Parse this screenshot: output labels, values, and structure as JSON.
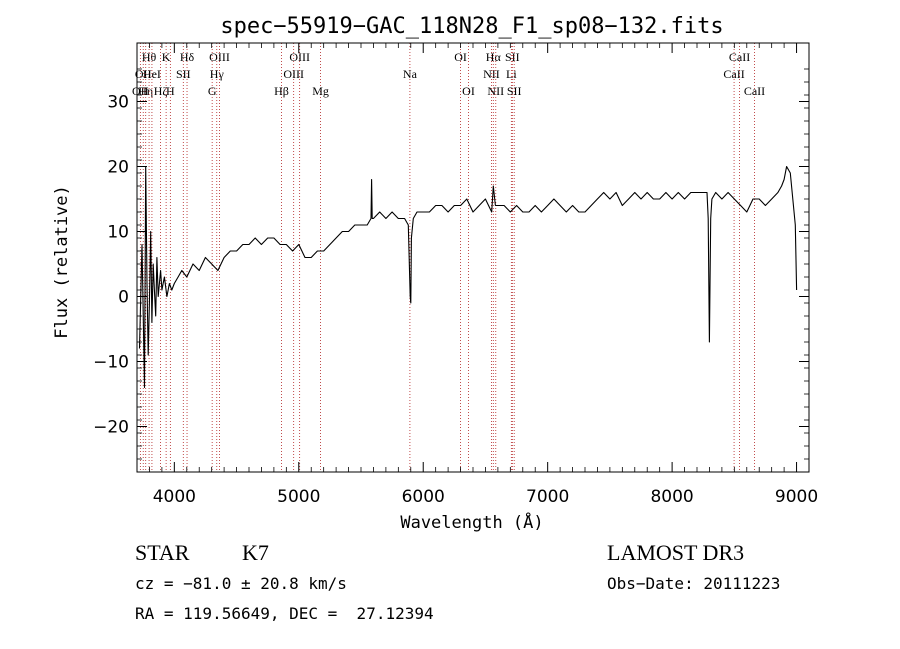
{
  "chart_data": {
    "type": "line",
    "title": "spec−55919−GAC_118N28_F1_sp08−132.fits",
    "xlabel": "Wavelength (Å)",
    "ylabel": "Flux (relative)",
    "xlim": [
      3700,
      9100
    ],
    "ylim": [
      -27,
      39
    ],
    "x_ticks": [
      {
        "value": 4000,
        "label": "4000"
      },
      {
        "value": 5000,
        "label": "5000"
      },
      {
        "value": 6000,
        "label": "6000"
      },
      {
        "value": 7000,
        "label": "7000"
      },
      {
        "value": 8000,
        "label": "8000"
      },
      {
        "value": 9000,
        "label": "9000"
      }
    ],
    "y_ticks": [
      {
        "value": -20,
        "label": "−20"
      },
      {
        "value": -10,
        "label": "−10"
      },
      {
        "value": 0,
        "label": "0"
      },
      {
        "value": 10,
        "label": "10"
      },
      {
        "value": 20,
        "label": "20"
      },
      {
        "value": 30,
        "label": "30"
      }
    ],
    "series": [
      {
        "name": "flux",
        "x": [
          3720,
          3740,
          3760,
          3770,
          3780,
          3790,
          3800,
          3810,
          3820,
          3830,
          3840,
          3850,
          3860,
          3870,
          3880,
          3890,
          3900,
          3920,
          3940,
          3960,
          3980,
          4000,
          4030,
          4060,
          4100,
          4150,
          4200,
          4250,
          4300,
          4350,
          4400,
          4450,
          4500,
          4550,
          4600,
          4650,
          4700,
          4750,
          4800,
          4850,
          4900,
          4950,
          5000,
          5050,
          5100,
          5150,
          5200,
          5250,
          5300,
          5350,
          5400,
          5450,
          5500,
          5550,
          5580,
          5585,
          5590,
          5600,
          5650,
          5700,
          5750,
          5800,
          5850,
          5880,
          5895,
          5900,
          5905,
          5920,
          5950,
          6000,
          6050,
          6100,
          6150,
          6200,
          6250,
          6300,
          6350,
          6400,
          6450,
          6500,
          6550,
          6563,
          6580,
          6600,
          6650,
          6700,
          6750,
          6800,
          6850,
          6900,
          6950,
          7000,
          7050,
          7100,
          7150,
          7200,
          7250,
          7300,
          7350,
          7400,
          7450,
          7500,
          7550,
          7600,
          7650,
          7700,
          7750,
          7800,
          7850,
          7900,
          7950,
          8000,
          8050,
          8100,
          8150,
          8200,
          8250,
          8280,
          8290,
          8300,
          8310,
          8320,
          8350,
          8400,
          8450,
          8500,
          8550,
          8600,
          8650,
          8700,
          8750,
          8800,
          8850,
          8880,
          8900,
          8920,
          8950,
          8970,
          8990,
          9000
        ],
        "y": [
          -8,
          8,
          -14,
          20,
          2,
          -9,
          -1,
          10,
          -4,
          5,
          1,
          -3,
          6,
          0,
          2,
          4,
          1,
          3,
          0,
          2,
          1,
          2,
          3,
          4,
          3,
          5,
          4,
          6,
          5,
          4,
          6,
          7,
          7,
          8,
          8,
          9,
          8,
          9,
          9,
          8,
          8,
          7,
          8,
          6,
          6,
          7,
          7,
          8,
          9,
          10,
          10,
          11,
          11,
          11,
          12,
          18,
          12,
          12,
          13,
          12,
          13,
          12,
          12,
          11,
          0,
          -1,
          9,
          12,
          13,
          13,
          13,
          14,
          14,
          13,
          14,
          14,
          15,
          13,
          14,
          15,
          13,
          17,
          14,
          14,
          14,
          13,
          14,
          13,
          13,
          14,
          13,
          14,
          15,
          14,
          13,
          14,
          13,
          13,
          14,
          15,
          16,
          15,
          16,
          14,
          15,
          16,
          15,
          16,
          15,
          15,
          16,
          15,
          16,
          15,
          16,
          16,
          16,
          16,
          12,
          -7,
          12,
          15,
          16,
          15,
          16,
          15,
          14,
          13,
          15,
          15,
          14,
          15,
          16,
          17,
          18,
          20,
          19,
          15,
          11,
          1
        ]
      }
    ],
    "spectral_lines": [
      {
        "wavelength": 3727,
        "label": "OII",
        "row": 2
      },
      {
        "wavelength": 3750,
        "label": "OII",
        "row": 1
      },
      {
        "wavelength": 3770,
        "label": "Hη",
        "row": 2
      },
      {
        "wavelength": 3797,
        "label": "Hθ",
        "row": 0
      },
      {
        "wavelength": 3820,
        "label": "HeI",
        "row": 1
      },
      {
        "wavelength": 3889,
        "label": "Hζ",
        "row": 2
      },
      {
        "wavelength": 3934,
        "label": "K",
        "row": 0
      },
      {
        "wavelength": 3968,
        "label": "H",
        "row": 2
      },
      {
        "wavelength": 4072,
        "label": "SII",
        "row": 1
      },
      {
        "wavelength": 4102,
        "label": "Hδ",
        "row": 0
      },
      {
        "wavelength": 4304,
        "label": "G",
        "row": 2
      },
      {
        "wavelength": 4341,
        "label": "Hγ",
        "row": 1
      },
      {
        "wavelength": 4363,
        "label": "OIII",
        "row": 0
      },
      {
        "wavelength": 4861,
        "label": "Hβ",
        "row": 2
      },
      {
        "wavelength": 4959,
        "label": "OIII",
        "row": 1
      },
      {
        "wavelength": 5007,
        "label": "OIII",
        "row": 0
      },
      {
        "wavelength": 5175,
        "label": "Mg",
        "row": 2
      },
      {
        "wavelength": 5893,
        "label": "Na",
        "row": 1
      },
      {
        "wavelength": 6300,
        "label": "OI",
        "row": 0
      },
      {
        "wavelength": 6364,
        "label": "OI",
        "row": 2
      },
      {
        "wavelength": 6548,
        "label": "NII",
        "row": 1
      },
      {
        "wavelength": 6563,
        "label": "Hα",
        "row": 0
      },
      {
        "wavelength": 6583,
        "label": "NII",
        "row": 2
      },
      {
        "wavelength": 6708,
        "label": "Li",
        "row": 1
      },
      {
        "wavelength": 6716,
        "label": "SII",
        "row": 0
      },
      {
        "wavelength": 6731,
        "label": "SII",
        "row": 2
      },
      {
        "wavelength": 8498,
        "label": "CaII",
        "row": 1
      },
      {
        "wavelength": 8542,
        "label": "CaII",
        "row": 0
      },
      {
        "wavelength": 8662,
        "label": "CaII",
        "row": 2
      }
    ]
  },
  "info": {
    "class": "STAR",
    "subclass": "K7",
    "survey": "LAMOST DR3",
    "redshift": "cz = −81.0 ± 20.8 km/s",
    "obs_date": "Obs−Date: 20111223",
    "coords": "RA = 119.56649, DEC =  27.12394"
  }
}
